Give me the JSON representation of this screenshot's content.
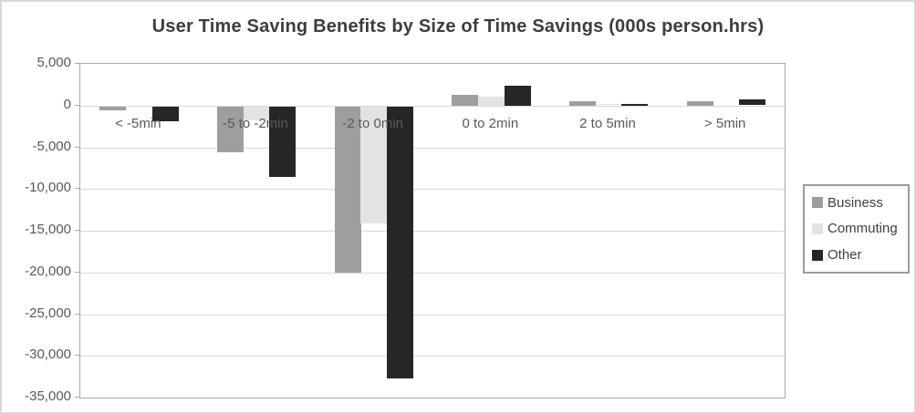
{
  "chart_data": {
    "type": "bar",
    "title": "User Time Saving Benefits by Size of Time Savings (000s person.hrs)",
    "categories": [
      "< -5min",
      "-5 to -2min",
      "-2 to 0min",
      "0 to 2min",
      "2 to 5min",
      "> 5min"
    ],
    "series": [
      {
        "name": "Business",
        "color": "#9e9e9e",
        "values": [
          -400,
          -5500,
          -19900,
          1300,
          500,
          500
        ]
      },
      {
        "name": "Commuting",
        "color": "#e3e3e3",
        "values": [
          0,
          -1600,
          -14000,
          1100,
          150,
          0
        ]
      },
      {
        "name": "Other",
        "color": "#262626",
        "values": [
          -1700,
          -8400,
          -32600,
          2400,
          200,
          700
        ]
      }
    ],
    "ylim": [
      -35000,
      5000
    ],
    "ytick_step": 5000,
    "ytick_labels": [
      "5,000",
      "0",
      "-5,000",
      "-10,000",
      "-15,000",
      "-20,000",
      "-25,000",
      "-30,000",
      "-35,000"
    ],
    "grid": true,
    "legend_position": "right",
    "xlabel": "",
    "ylabel": ""
  },
  "colors": {
    "gridline": "#d9d9d9",
    "plot_border": "#a9a9a9",
    "axis_text": "#595959",
    "title_text": "#3d3d3d",
    "frame_border": "#d7d7d7"
  }
}
